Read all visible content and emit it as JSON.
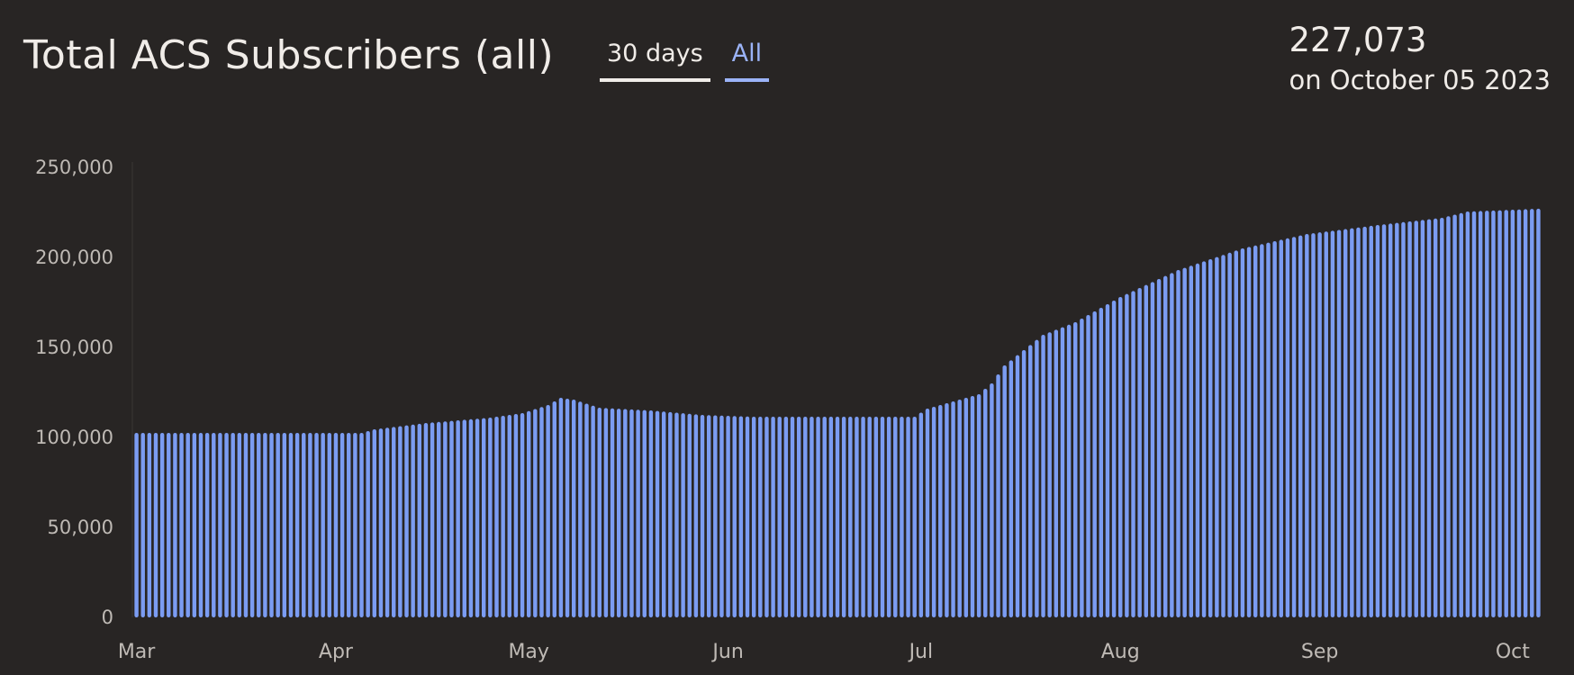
{
  "header": {
    "title": "Total ACS Subscribers (all)",
    "tabs": [
      {
        "label": "30 days",
        "active": true
      },
      {
        "label": "All",
        "active": false
      }
    ],
    "stat_value": "227,073",
    "stat_date": "on October 05 2023"
  },
  "colors": {
    "bar": "#7b9cf2",
    "background": "#282524",
    "active_tab": "#f0ece8",
    "link_tab": "#9bb3f7"
  },
  "chart_data": {
    "type": "bar",
    "title": "Total ACS Subscribers (all)",
    "xlabel": "",
    "ylabel": "",
    "ylim": [
      0,
      250000
    ],
    "yticks": [
      0,
      50000,
      100000,
      150000,
      200000,
      250000
    ],
    "ytick_labels": [
      "0",
      "50,000",
      "100,000",
      "150,000",
      "200,000",
      "250,000"
    ],
    "xticks": [
      "2023-03-01",
      "2023-04-01",
      "2023-05-01",
      "2023-06-01",
      "2023-07-01",
      "2023-08-01",
      "2023-09-01",
      "2023-10-01"
    ],
    "xtick_labels": [
      "Mar",
      "Apr",
      "May",
      "Jun",
      "Jul",
      "Aug",
      "Sep",
      "Oct"
    ],
    "xlim": [
      "2023-03-01",
      "2023-10-05"
    ],
    "grid": false,
    "series": [
      {
        "anchors": [
          {
            "x": "2023-03-01",
            "y": 102500
          },
          {
            "x": "2023-04-05",
            "y": 102500
          },
          {
            "x": "2023-04-07",
            "y": 104500
          },
          {
            "x": "2023-04-15",
            "y": 108000
          },
          {
            "x": "2023-04-25",
            "y": 111000
          },
          {
            "x": "2023-04-30",
            "y": 113500
          },
          {
            "x": "2023-05-04",
            "y": 118000
          },
          {
            "x": "2023-05-06",
            "y": 122000
          },
          {
            "x": "2023-05-08",
            "y": 121000
          },
          {
            "x": "2023-05-12",
            "y": 116500
          },
          {
            "x": "2023-05-20",
            "y": 115000
          },
          {
            "x": "2023-05-28",
            "y": 112500
          },
          {
            "x": "2023-06-05",
            "y": 111500
          },
          {
            "x": "2023-06-30",
            "y": 111500
          },
          {
            "x": "2023-07-02",
            "y": 116000
          },
          {
            "x": "2023-07-10",
            "y": 124000
          },
          {
            "x": "2023-07-12",
            "y": 130000
          },
          {
            "x": "2023-07-14",
            "y": 140000
          },
          {
            "x": "2023-07-20",
            "y": 157000
          },
          {
            "x": "2023-07-25",
            "y": 164000
          },
          {
            "x": "2023-08-01",
            "y": 178000
          },
          {
            "x": "2023-08-10",
            "y": 193000
          },
          {
            "x": "2023-08-20",
            "y": 205000
          },
          {
            "x": "2023-08-30",
            "y": 213000
          },
          {
            "x": "2023-09-10",
            "y": 218000
          },
          {
            "x": "2023-09-20",
            "y": 222000
          },
          {
            "x": "2023-09-24",
            "y": 225500
          },
          {
            "x": "2023-10-05",
            "y": 227073
          }
        ]
      }
    ]
  }
}
